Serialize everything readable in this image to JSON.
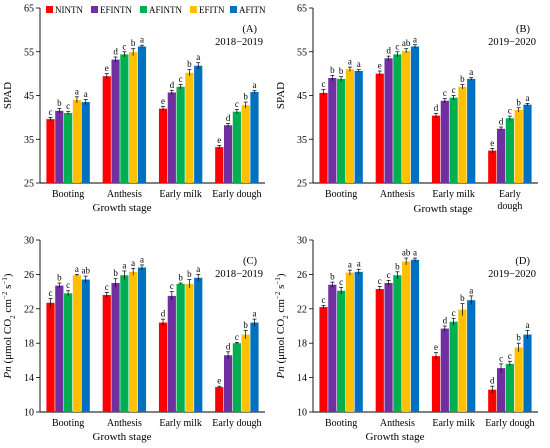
{
  "legend": [
    {
      "name": "NINTN",
      "color": "#ff0000"
    },
    {
      "name": "EFINTN",
      "color": "#7030a0"
    },
    {
      "name": "AFINTN",
      "color": "#00b050"
    },
    {
      "name": "EFITN",
      "color": "#ffc000"
    },
    {
      "name": "AFITN",
      "color": "#0070c0"
    }
  ],
  "chart_data": [
    {
      "type": "bar",
      "panel": "(A)",
      "season": "2018−2019",
      "ylabel": "SPAD",
      "xlabel": "Growth stage",
      "ylim": [
        25,
        65
      ],
      "yticks": [
        25,
        35,
        45,
        55,
        65
      ],
      "categories": [
        "Booting",
        "Anthesis",
        "Early milk",
        "Early dough"
      ],
      "series": [
        {
          "name": "NINTN",
          "values": [
            39.6,
            49.4,
            42.0,
            33.2
          ],
          "errors": [
            0.4,
            0.6,
            0.5,
            0.4
          ],
          "letters": [
            "c",
            "e",
            "e",
            "e"
          ]
        },
        {
          "name": "EFINTN",
          "values": [
            41.5,
            53.2,
            45.7,
            38.2
          ],
          "errors": [
            0.5,
            0.6,
            0.5,
            0.4
          ],
          "letters": [
            "b",
            "d",
            "d",
            "d"
          ]
        },
        {
          "name": "AFINTN",
          "values": [
            41.0,
            54.4,
            47.0,
            41.3
          ],
          "errors": [
            0.4,
            0.6,
            0.5,
            0.5
          ],
          "letters": [
            "c",
            "c",
            "c",
            "c"
          ]
        },
        {
          "name": "EFITN",
          "values": [
            44.0,
            54.9,
            50.2,
            42.8
          ],
          "errors": [
            0.7,
            0.8,
            0.7,
            0.7
          ],
          "letters": [
            "a",
            "b",
            "b",
            "b"
          ]
        },
        {
          "name": "AFITN",
          "values": [
            43.5,
            56.2,
            51.8,
            45.8
          ],
          "errors": [
            0.6,
            0.3,
            0.7,
            0.3
          ],
          "letters": [
            "a",
            "a",
            "a",
            "a"
          ]
        }
      ]
    },
    {
      "type": "bar",
      "panel": "(B)",
      "season": "2019−2020",
      "ylabel": "SPAD",
      "xlabel": "Growth stage",
      "ylim": [
        25,
        65
      ],
      "yticks": [
        25,
        35,
        45,
        55,
        65
      ],
      "categories": [
        "Booting",
        "Anthesis",
        "Early milk",
        "Early dough"
      ],
      "series": [
        {
          "name": "NINTN",
          "values": [
            45.6,
            50.0,
            40.4,
            32.4
          ],
          "errors": [
            0.8,
            0.6,
            0.5,
            0.5
          ],
          "letters": [
            "c",
            "e",
            "d",
            "e"
          ]
        },
        {
          "name": "EFINTN",
          "values": [
            49.0,
            53.5,
            43.8,
            37.4
          ],
          "errors": [
            0.6,
            0.5,
            0.5,
            0.4
          ],
          "letters": [
            "b",
            "d",
            "c",
            "d"
          ]
        },
        {
          "name": "AFINTN",
          "values": [
            48.8,
            54.4,
            44.5,
            39.8
          ],
          "errors": [
            0.5,
            0.6,
            0.5,
            0.5
          ],
          "letters": [
            "b",
            "c",
            "c",
            "c"
          ]
        },
        {
          "name": "EFITN",
          "values": [
            51.0,
            55.2,
            47.0,
            41.7
          ],
          "errors": [
            0.5,
            0.5,
            0.5,
            0.5
          ],
          "letters": [
            "a",
            "ab",
            "b",
            "b"
          ]
        },
        {
          "name": "AFITN",
          "values": [
            50.6,
            56.2,
            48.8,
            42.9
          ],
          "errors": [
            0.3,
            0.4,
            0.3,
            0.3
          ],
          "letters": [
            "a",
            "a",
            "a",
            "a"
          ]
        }
      ]
    },
    {
      "type": "bar",
      "panel": "(C)",
      "season": "2018−2019",
      "ylabel": "Pn (μmol CO2 cm−2 s−1)",
      "xlabel": "Growth stage",
      "ylim": [
        10,
        30
      ],
      "yticks": [
        10,
        14,
        18,
        22,
        26,
        30
      ],
      "categories": [
        "Booting",
        "Anthesis",
        "Early milk",
        "Early dough"
      ],
      "series": [
        {
          "name": "NINTN",
          "values": [
            22.7,
            23.6,
            20.4,
            12.9
          ],
          "errors": [
            0.5,
            0.3,
            0.4,
            0.1
          ],
          "letters": [
            "c",
            "c",
            "d",
            "e"
          ]
        },
        {
          "name": "EFINTN",
          "values": [
            24.7,
            25.0,
            23.5,
            16.6
          ],
          "errors": [
            0.3,
            0.5,
            0.5,
            0.4
          ],
          "letters": [
            "b",
            "b",
            "c",
            "d"
          ]
        },
        {
          "name": "AFINTN",
          "values": [
            23.8,
            25.9,
            24.9,
            18.0
          ],
          "errors": [
            0.3,
            0.5,
            0.1,
            0.1
          ],
          "letters": [
            "c",
            "a",
            "b",
            "c"
          ]
        },
        {
          "name": "EFITN",
          "values": [
            25.9,
            26.3,
            24.9,
            19.0
          ],
          "errors": [
            0.1,
            0.4,
            0.5,
            0.5
          ],
          "letters": [
            "a",
            "a",
            "b",
            "b"
          ]
        },
        {
          "name": "AFITN",
          "values": [
            25.4,
            26.8,
            25.6,
            20.4
          ],
          "errors": [
            0.4,
            0.3,
            0.4,
            0.4
          ],
          "letters": [
            "ab",
            "a",
            "a",
            "a"
          ]
        }
      ]
    },
    {
      "type": "bar",
      "panel": "(D)",
      "season": "2019−2020",
      "ylabel": "Pn (μmol CO2 cm−2 s−1)",
      "xlabel": "Growth stage",
      "ylim": [
        10,
        30
      ],
      "yticks": [
        10,
        14,
        18,
        22,
        26,
        30
      ],
      "categories": [
        "Booting",
        "Anthesis",
        "Early milk",
        "Early dough"
      ],
      "series": [
        {
          "name": "NINTN",
          "values": [
            22.2,
            24.3,
            16.5,
            12.6
          ],
          "errors": [
            0.2,
            0.3,
            0.4,
            0.4
          ],
          "letters": [
            "c",
            "c",
            "e",
            "d"
          ]
        },
        {
          "name": "EFINTN",
          "values": [
            24.8,
            25.0,
            19.7,
            15.1
          ],
          "errors": [
            0.3,
            0.3,
            0.3,
            0.5
          ],
          "letters": [
            "b",
            "c",
            "d",
            "c"
          ]
        },
        {
          "name": "AFINTN",
          "values": [
            24.1,
            25.9,
            20.5,
            15.6
          ],
          "errors": [
            0.4,
            0.4,
            0.4,
            0.3
          ],
          "letters": [
            "c",
            "b",
            "c",
            "c"
          ]
        },
        {
          "name": "EFITN",
          "values": [
            26.2,
            27.5,
            21.9,
            17.5
          ],
          "errors": [
            0.3,
            0.4,
            0.7,
            0.5
          ],
          "letters": [
            "a",
            "ab",
            "b",
            "b"
          ]
        },
        {
          "name": "AFITN",
          "values": [
            26.3,
            27.7,
            23.0,
            19.0
          ],
          "errors": [
            0.3,
            0.2,
            0.5,
            0.5
          ],
          "letters": [
            "a",
            "a",
            "a",
            "a"
          ]
        }
      ]
    }
  ]
}
